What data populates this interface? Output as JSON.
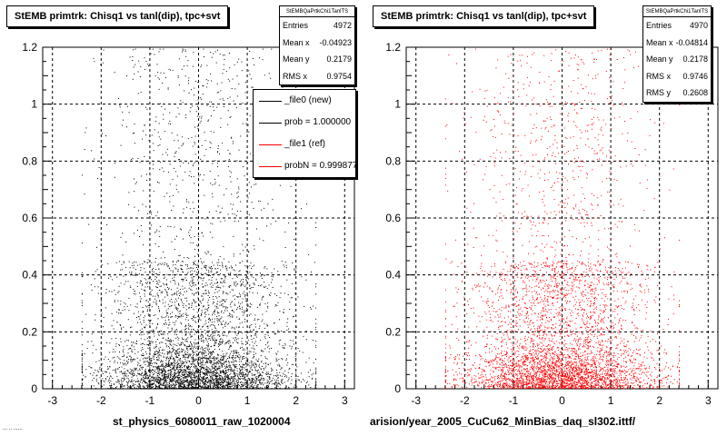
{
  "colors": {
    "new": "#000000",
    "ref": "#ff0000"
  },
  "footer_text": "... .. ......",
  "panels": [
    {
      "title": "StEMB primtrk: Chisq1 vs tanl(dip), tpc+svt",
      "stats": {
        "name": "StEMBQaPrtkChi1TanlTS",
        "rows": [
          {
            "label": "Entries",
            "value": "4972"
          },
          {
            "label": "Mean x",
            "value": "-0.04923"
          },
          {
            "label": "Mean y",
            "value": "0.2179"
          },
          {
            "label": "RMS x",
            "value": "0.9754"
          }
        ]
      },
      "legend": [
        {
          "label": "_file0 (new)",
          "color": "#000000"
        },
        {
          "label": "prob = 1.000000",
          "color": "#000000"
        },
        {
          "label": "_file1 (ref)",
          "color": "#ff0000"
        },
        {
          "label": "probN = 0.999877",
          "color": "#ff0000"
        }
      ],
      "xtitle": "st_physics_6080011_raw_1020004"
    },
    {
      "title": "StEMB primtrk: Chisq1 vs tanl(dip), tpc+svt",
      "stats": {
        "name": "StEMBQaPrtkChi1TanlTS",
        "rows": [
          {
            "label": "Entries",
            "value": "4970"
          },
          {
            "label": "Mean x",
            "value": "-0.04814"
          },
          {
            "label": "Mean y",
            "value": "0.2178"
          },
          {
            "label": "RMS x",
            "value": "0.9746"
          },
          {
            "label": "RMS y",
            "value": "0.2608"
          }
        ]
      },
      "xtitle": "arision/year_2005_CuCu62_MinBias_daq_sl302.ittf/"
    }
  ],
  "chart_data": [
    {
      "type": "scatter",
      "title": "StEMB primtrk: Chisq1 vs tanl(dip), tpc+svt",
      "xlabel": "st_physics_6080011_raw_1020004",
      "ylabel": "",
      "xlim": [
        -3.2,
        3.2
      ],
      "ylim": [
        0,
        1.2
      ],
      "xticks": [
        -3,
        -2,
        -1,
        0,
        1,
        2,
        3
      ],
      "yticks": [
        0,
        0.2,
        0.4,
        0.6,
        0.8,
        1,
        1.2
      ],
      "grid": true,
      "entries": 4972,
      "mean_x": -0.04923,
      "mean_y": 0.2179,
      "rms_x": 0.9754,
      "series": [
        {
          "name": "_file0 (new)",
          "color": "#000000"
        }
      ]
    },
    {
      "type": "scatter",
      "title": "StEMB primtrk: Chisq1 vs tanl(dip), tpc+svt",
      "xlabel": "arision/year_2005_CuCu62_MinBias_daq_sl302.ittf/",
      "ylabel": "",
      "xlim": [
        -3.2,
        3.2
      ],
      "ylim": [
        0,
        1.2
      ],
      "xticks": [
        -3,
        -2,
        -1,
        0,
        1,
        2,
        3
      ],
      "yticks": [
        0,
        0.2,
        0.4,
        0.6,
        0.8,
        1,
        1.2
      ],
      "grid": true,
      "entries": 4970,
      "mean_x": -0.04814,
      "mean_y": 0.2178,
      "rms_x": 0.9746,
      "rms_y": 0.2608,
      "series": [
        {
          "name": "_file1 (ref)",
          "color": "#ff0000"
        }
      ]
    }
  ]
}
